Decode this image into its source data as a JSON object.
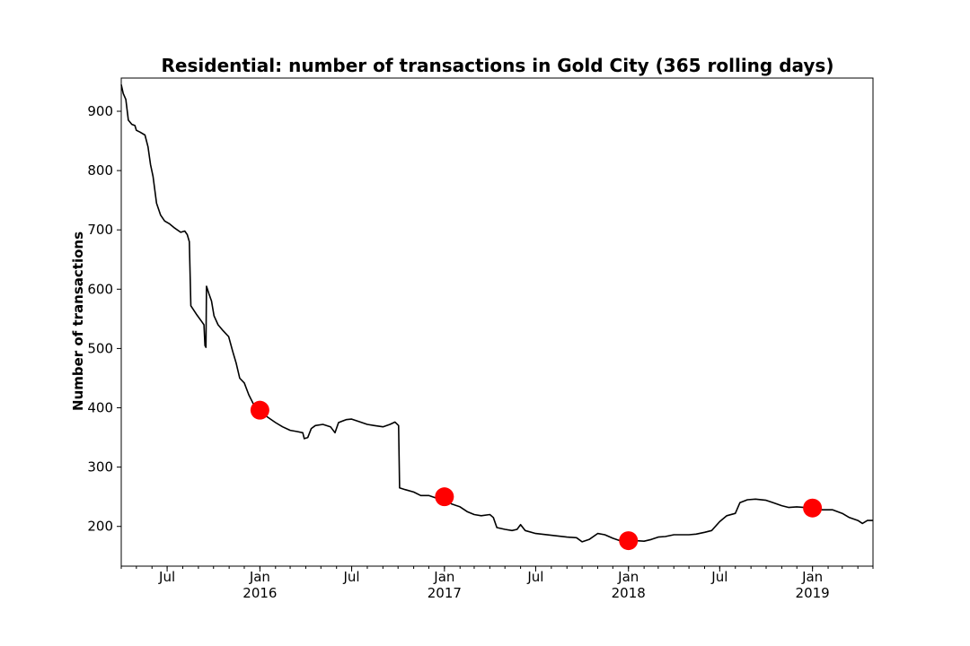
{
  "chart_data": {
    "type": "line",
    "title": "Residential: number of transactions in Gold City (365 rolling days)",
    "xlabel": "",
    "ylabel": "Number of transactions",
    "xlim": [
      "2015-04-01",
      "2019-05-01"
    ],
    "ylim": [
      133,
      956
    ],
    "grid": false,
    "colors": {
      "line": "#000000",
      "marker": "#ff0000"
    },
    "y_ticks": [
      200,
      300,
      400,
      500,
      600,
      700,
      800,
      900
    ],
    "x_ticks": [
      {
        "date": "2015-07-01",
        "label": "Jul",
        "sublabel": ""
      },
      {
        "date": "2016-01-01",
        "label": "Jan",
        "sublabel": "2016"
      },
      {
        "date": "2016-07-01",
        "label": "Jul",
        "sublabel": ""
      },
      {
        "date": "2017-01-01",
        "label": "Jan",
        "sublabel": "2017"
      },
      {
        "date": "2017-07-01",
        "label": "Jul",
        "sublabel": ""
      },
      {
        "date": "2018-01-01",
        "label": "Jan",
        "sublabel": "2018"
      },
      {
        "date": "2018-07-01",
        "label": "Jul",
        "sublabel": ""
      },
      {
        "date": "2019-01-01",
        "label": "Jan",
        "sublabel": "2019"
      }
    ],
    "series": [
      {
        "points": [
          [
            "2015-04-01",
            945
          ],
          [
            "2015-04-05",
            930
          ],
          [
            "2015-04-10",
            920
          ],
          [
            "2015-04-15",
            885
          ],
          [
            "2015-04-22",
            878
          ],
          [
            "2015-04-28",
            876
          ],
          [
            "2015-05-01",
            868
          ],
          [
            "2015-05-08",
            865
          ],
          [
            "2015-05-18",
            860
          ],
          [
            "2015-05-24",
            840
          ],
          [
            "2015-05-29",
            810
          ],
          [
            "2015-06-03",
            790
          ],
          [
            "2015-06-10",
            745
          ],
          [
            "2015-06-18",
            725
          ],
          [
            "2015-06-26",
            715
          ],
          [
            "2015-07-06",
            710
          ],
          [
            "2015-07-16",
            703
          ],
          [
            "2015-07-28",
            696
          ],
          [
            "2015-08-05",
            698
          ],
          [
            "2015-08-10",
            692
          ],
          [
            "2015-08-14",
            680
          ],
          [
            "2015-08-17",
            572
          ],
          [
            "2015-08-28",
            558
          ],
          [
            "2015-09-08",
            545
          ],
          [
            "2015-09-12",
            540
          ],
          [
            "2015-09-14",
            505
          ],
          [
            "2015-09-16",
            502
          ],
          [
            "2015-09-17",
            605
          ],
          [
            "2015-09-22",
            592
          ],
          [
            "2015-09-27",
            580
          ],
          [
            "2015-10-02",
            555
          ],
          [
            "2015-10-10",
            540
          ],
          [
            "2015-10-20",
            530
          ],
          [
            "2015-10-31",
            520
          ],
          [
            "2015-11-08",
            495
          ],
          [
            "2015-11-15",
            475
          ],
          [
            "2015-11-22",
            450
          ],
          [
            "2015-12-01",
            442
          ],
          [
            "2015-12-10",
            422
          ],
          [
            "2015-12-20",
            405
          ],
          [
            "2016-01-01",
            396
          ],
          [
            "2016-01-15",
            385
          ],
          [
            "2016-02-01",
            375
          ],
          [
            "2016-02-15",
            368
          ],
          [
            "2016-03-01",
            362
          ],
          [
            "2016-03-15",
            360
          ],
          [
            "2016-03-26",
            358
          ],
          [
            "2016-03-29",
            348
          ],
          [
            "2016-04-05",
            350
          ],
          [
            "2016-04-12",
            365
          ],
          [
            "2016-04-20",
            370
          ],
          [
            "2016-05-05",
            372
          ],
          [
            "2016-05-20",
            368
          ],
          [
            "2016-05-29",
            358
          ],
          [
            "2016-06-05",
            375
          ],
          [
            "2016-06-20",
            380
          ],
          [
            "2016-07-01",
            381
          ],
          [
            "2016-07-15",
            377
          ],
          [
            "2016-08-01",
            372
          ],
          [
            "2016-08-15",
            370
          ],
          [
            "2016-09-01",
            368
          ],
          [
            "2016-09-15",
            372
          ],
          [
            "2016-09-25",
            376
          ],
          [
            "2016-10-02",
            370
          ],
          [
            "2016-10-04",
            265
          ],
          [
            "2016-10-15",
            262
          ],
          [
            "2016-11-01",
            258
          ],
          [
            "2016-11-15",
            252
          ],
          [
            "2016-12-01",
            252
          ],
          [
            "2016-12-15",
            248
          ],
          [
            "2017-01-01",
            248
          ],
          [
            "2017-01-15",
            238
          ],
          [
            "2017-02-01",
            233
          ],
          [
            "2017-02-15",
            225
          ],
          [
            "2017-03-01",
            220
          ],
          [
            "2017-03-15",
            218
          ],
          [
            "2017-04-01",
            220
          ],
          [
            "2017-04-08",
            215
          ],
          [
            "2017-04-15",
            198
          ],
          [
            "2017-05-01",
            195
          ],
          [
            "2017-05-15",
            193
          ],
          [
            "2017-05-25",
            195
          ],
          [
            "2017-06-01",
            203
          ],
          [
            "2017-06-10",
            193
          ],
          [
            "2017-07-01",
            188
          ],
          [
            "2017-08-01",
            185
          ],
          [
            "2017-09-01",
            182
          ],
          [
            "2017-09-20",
            181
          ],
          [
            "2017-10-01",
            174
          ],
          [
            "2017-10-15",
            178
          ],
          [
            "2017-11-01",
            188
          ],
          [
            "2017-11-15",
            186
          ],
          [
            "2017-12-01",
            180
          ],
          [
            "2017-12-15",
            176
          ],
          [
            "2018-01-01",
            177
          ],
          [
            "2018-01-15",
            176
          ],
          [
            "2018-02-01",
            175
          ],
          [
            "2018-02-15",
            178
          ],
          [
            "2018-03-01",
            182
          ],
          [
            "2018-03-15",
            183
          ],
          [
            "2018-04-01",
            186
          ],
          [
            "2018-05-01",
            186
          ],
          [
            "2018-05-15",
            187
          ],
          [
            "2018-06-01",
            190
          ],
          [
            "2018-06-15",
            193
          ],
          [
            "2018-07-01",
            208
          ],
          [
            "2018-07-15",
            218
          ],
          [
            "2018-08-01",
            222
          ],
          [
            "2018-08-10",
            240
          ],
          [
            "2018-08-25",
            245
          ],
          [
            "2018-09-10",
            246
          ],
          [
            "2018-10-01",
            244
          ],
          [
            "2018-10-15",
            240
          ],
          [
            "2018-11-01",
            235
          ],
          [
            "2018-11-15",
            232
          ],
          [
            "2018-12-01",
            233
          ],
          [
            "2018-12-15",
            232
          ],
          [
            "2019-01-01",
            232
          ],
          [
            "2019-01-20",
            228
          ],
          [
            "2019-02-10",
            228
          ],
          [
            "2019-03-01",
            222
          ],
          [
            "2019-03-15",
            215
          ],
          [
            "2019-04-01",
            210
          ],
          [
            "2019-04-10",
            205
          ],
          [
            "2019-04-20",
            210
          ],
          [
            "2019-05-01",
            210
          ]
        ]
      }
    ],
    "markers": [
      [
        "2016-01-01",
        396
      ],
      [
        "2017-01-01",
        250
      ],
      [
        "2018-01-01",
        176
      ],
      [
        "2019-01-01",
        231
      ]
    ]
  }
}
